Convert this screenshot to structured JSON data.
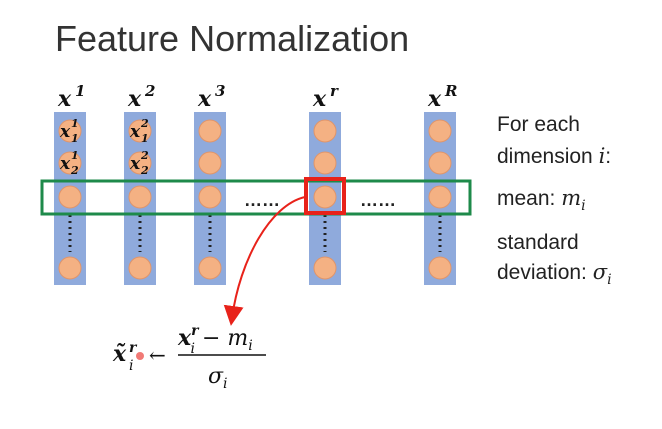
{
  "title": "Feature Normalization",
  "columns": [
    {
      "sym": "x",
      "sup": "1",
      "labels": [
        {
          "sub": "1",
          "sup": "1"
        },
        {
          "sub": "2",
          "sup": "1"
        }
      ]
    },
    {
      "sym": "x",
      "sup": "2",
      "labels": [
        {
          "sub": "1",
          "sup": "2"
        },
        {
          "sub": "2",
          "sup": "2"
        }
      ]
    },
    {
      "sym": "x",
      "sup": "3",
      "labels": []
    },
    {
      "sym": "x",
      "sup": "r",
      "labels": []
    },
    {
      "sym": "x",
      "sup": "R",
      "labels": []
    }
  ],
  "ellipsis": [
    "……",
    "……"
  ],
  "side_text": {
    "line1": "For each",
    "line2_prefix": "dimension ",
    "line2_var": "i",
    "line2_suffix": ":",
    "mean_prefix": "mean: ",
    "mean_var": "m",
    "mean_sub": "i",
    "std_line1": "standard",
    "std_prefix": "deviation: ",
    "std_var": "σ",
    "std_sub": "i"
  },
  "formula": {
    "lhs_sym": "x̃",
    "lhs_sup": "r",
    "lhs_sub": "i",
    "arrow": "←",
    "num_sym": "x",
    "num_sup": "r",
    "num_sub": "i",
    "num_minus": " − ",
    "num_m": "m",
    "num_m_sub": "i",
    "den_sym": "σ",
    "den_sub": "i"
  },
  "colors": {
    "column_fill": "#8faadc",
    "column_stroke": "#7f9fd3",
    "circle_fill": "#f4b183",
    "circle_stroke": "#e0956a",
    "green_box": "#1e8a4a",
    "red_box": "#e8221a",
    "arrow": "#e8221a"
  }
}
